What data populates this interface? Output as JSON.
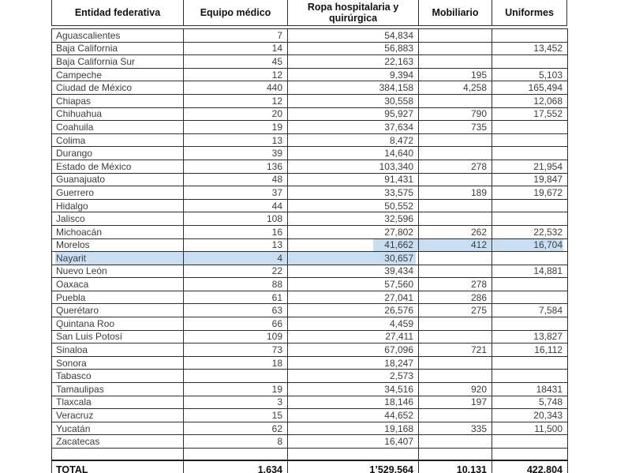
{
  "colors": {
    "selection": "#c9def2",
    "border": "#2d2d2d",
    "text": "#3c3c3c"
  },
  "table": {
    "headers": [
      "Entidad federativa",
      "Equipo médico",
      "Ropa hospitalaria y quirúrgica",
      "Mobiliario",
      "Uniformes"
    ],
    "rows": [
      {
        "name": "Aguascalientes",
        "equipo": "7",
        "ropa": "54,834",
        "mobiliario": "",
        "uniformes": ""
      },
      {
        "name": "Baja California",
        "equipo": "14",
        "ropa": "56,883",
        "mobiliario": "",
        "uniformes": "13,452"
      },
      {
        "name": "Baja California Sur",
        "equipo": "45",
        "ropa": "22,163",
        "mobiliario": "",
        "uniformes": ""
      },
      {
        "name": "Campeche",
        "equipo": "12",
        "ropa": "9,394",
        "mobiliario": "195",
        "uniformes": "5,103"
      },
      {
        "name": "Ciudad de México",
        "equipo": "440",
        "ropa": "384,158",
        "mobiliario": "4,258",
        "uniformes": "165,494"
      },
      {
        "name": "Chiapas",
        "equipo": "12",
        "ropa": "30,558",
        "mobiliario": "",
        "uniformes": "12,068"
      },
      {
        "name": "Chihuahua",
        "equipo": "20",
        "ropa": "95,927",
        "mobiliario": "790",
        "uniformes": "17,552"
      },
      {
        "name": "Coahuila",
        "equipo": "19",
        "ropa": "37,634",
        "mobiliario": "735",
        "uniformes": ""
      },
      {
        "name": "Colima",
        "equipo": "13",
        "ropa": "8,472",
        "mobiliario": "",
        "uniformes": ""
      },
      {
        "name": "Durango",
        "equipo": "39",
        "ropa": "14,640",
        "mobiliario": "",
        "uniformes": ""
      },
      {
        "name": "Estado de México",
        "equipo": "136",
        "ropa": "103,340",
        "mobiliario": "278",
        "uniformes": "21,954"
      },
      {
        "name": "Guanajuato",
        "equipo": "48",
        "ropa": "91,431",
        "mobiliario": "",
        "uniformes": "19,847"
      },
      {
        "name": "Guerrero",
        "equipo": "37",
        "ropa": "33,575",
        "mobiliario": "189",
        "uniformes": "19,672"
      },
      {
        "name": "Hidalgo",
        "equipo": "44",
        "ropa": "50,552",
        "mobiliario": "",
        "uniformes": ""
      },
      {
        "name": "Jalisco",
        "equipo": "108",
        "ropa": "32,596",
        "mobiliario": "",
        "uniformes": ""
      },
      {
        "name": "Michoacán",
        "equipo": "16",
        "ropa": "27,802",
        "mobiliario": "262",
        "uniformes": "22,532"
      },
      {
        "name": "Morelos",
        "equipo": "13",
        "ropa": "41,662",
        "mobiliario": "412",
        "uniformes": "16,704"
      },
      {
        "name": "Nayarit",
        "equipo": "4",
        "ropa": "30,657",
        "mobiliario": "",
        "uniformes": ""
      },
      {
        "name": "Nuevo León",
        "equipo": "22",
        "ropa": "39,434",
        "mobiliario": "",
        "uniformes": "14,881"
      },
      {
        "name": "Oaxaca",
        "equipo": "88",
        "ropa": "57,560",
        "mobiliario": "278",
        "uniformes": ""
      },
      {
        "name": "Puebla",
        "equipo": "61",
        "ropa": "27,041",
        "mobiliario": "286",
        "uniformes": ""
      },
      {
        "name": "Querétaro",
        "equipo": "63",
        "ropa": "26,576",
        "mobiliario": "275",
        "uniformes": "7,584"
      },
      {
        "name": "Quintana Roo",
        "equipo": "66",
        "ropa": "4,459",
        "mobiliario": "",
        "uniformes": ""
      },
      {
        "name": "San Luis Potosí",
        "equipo": "109",
        "ropa": "27,411",
        "mobiliario": "",
        "uniformes": "13,827"
      },
      {
        "name": "Sinaloa",
        "equipo": "73",
        "ropa": "67,096",
        "mobiliario": "721",
        "uniformes": "16,112"
      },
      {
        "name": "Sonora",
        "equipo": "18",
        "ropa": "18,247",
        "mobiliario": "",
        "uniformes": ""
      },
      {
        "name": "Tabasco",
        "equipo": "",
        "ropa": "2,573",
        "mobiliario": "",
        "uniformes": ""
      },
      {
        "name": "Tamaulipas",
        "equipo": "19",
        "ropa": "34,516",
        "mobiliario": "920",
        "uniformes": "18431"
      },
      {
        "name": "Tlaxcala",
        "equipo": "3",
        "ropa": "18,146",
        "mobiliario": "197",
        "uniformes": "5,748"
      },
      {
        "name": "Veracruz",
        "equipo": "15",
        "ropa": "44,652",
        "mobiliario": "",
        "uniformes": "20,343"
      },
      {
        "name": "Yucatán",
        "equipo": "62",
        "ropa": "19,168",
        "mobiliario": "335",
        "uniformes": "11,500"
      },
      {
        "name": "Zacatecas",
        "equipo": "8",
        "ropa": "16,407",
        "mobiliario": "",
        "uniformes": ""
      }
    ],
    "total": {
      "name": "TOTAL",
      "equipo": "1,634",
      "ropa": "1’529,564",
      "mobiliario": "10,131",
      "uniformes": "422,804"
    },
    "selection": {
      "cells": [
        {
          "row": "Morelos",
          "col": "ropa",
          "start": 65,
          "end": 100
        },
        {
          "row": "Morelos",
          "col": "mobiliario",
          "start": 0,
          "end": 100
        },
        {
          "row": "Morelos",
          "col": "uniformes",
          "start": 0,
          "end": 94
        },
        {
          "row": "Nayarit",
          "col": "name",
          "start": 2,
          "end": 100
        },
        {
          "row": "Nayarit",
          "col": "equipo",
          "start": 0,
          "end": 100
        },
        {
          "row": "Nayarit",
          "col": "ropa",
          "start": 0,
          "end": 98
        }
      ]
    }
  }
}
